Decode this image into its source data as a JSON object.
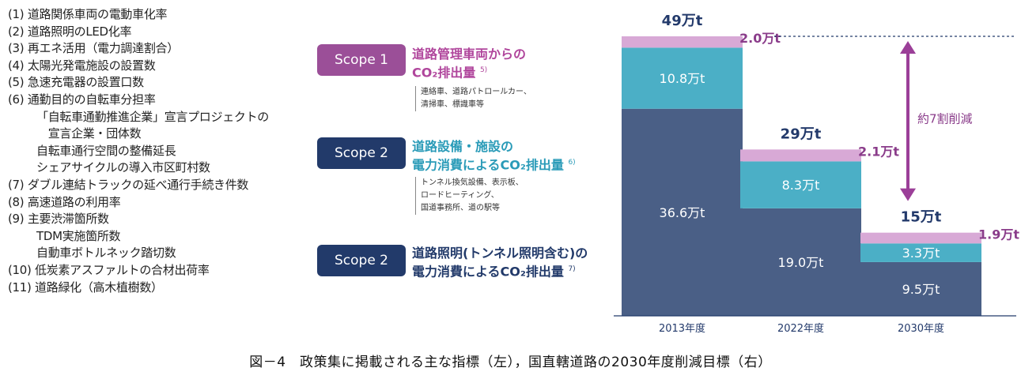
{
  "indicators": [
    {
      "text": "(1) 道路関係車両の電動車化率",
      "indent": false
    },
    {
      "text": "(2) 道路照明のLED化率",
      "indent": false
    },
    {
      "text": "(3) 再エネ活用（電力調達割合）",
      "indent": false
    },
    {
      "text": "(4) 太陽光発電施設の設置数",
      "indent": false
    },
    {
      "text": "(5) 急速充電器の設置口数",
      "indent": false
    },
    {
      "text": "(6) 通勤目的の自転車分担率",
      "indent": false
    },
    {
      "text": "「自転車通勤推進企業」宣言プロジェクトの",
      "indent": true
    },
    {
      "text": "　宣言企業・団体数",
      "indent": true
    },
    {
      "text": "自転車通行空間の整備延長",
      "indent": true
    },
    {
      "text": "シェアサイクルの導入市区町村数",
      "indent": true
    },
    {
      "text": "(7) ダブル連結トラックの延べ通行手続き件数",
      "indent": false
    },
    {
      "text": "(8) 高速道路の利用率",
      "indent": false
    },
    {
      "text": "(9) 主要渋滞箇所数",
      "indent": false
    },
    {
      "text": "TDM実施箇所数",
      "indent": true
    },
    {
      "text": "自動車ボトルネック踏切数",
      "indent": true
    },
    {
      "text": "(10) 低炭素アスファルトの合材出荷率",
      "indent": false
    },
    {
      "text": "(11) 道路緑化（高木植樹数）",
      "indent": false
    }
  ],
  "scopes": [
    {
      "badge": "Scope 1",
      "title_line1": "道路管理車両からの",
      "title_line2": "CO₂排出量",
      "ref": "5)",
      "note": "連絡車、道路パトロールカー、\n清掃車、標識車等",
      "color": "#9b4f98",
      "text_color": "#b0469c"
    },
    {
      "badge": "Scope 2",
      "title_line1": "道路設備・施設の",
      "title_line2": "電力消費によるCO₂排出量",
      "ref": "6)",
      "note": "トンネル換気設備、表示板、\nロードヒーティング、\n国道事務所、道の駅等",
      "color": "#223a6a",
      "text_color": "#2a9bb8"
    },
    {
      "badge": "Scope 2",
      "title_line1": "道路照明(トンネル照明含む)の",
      "title_line2": "電力消費によるCO₂排出量",
      "ref": "7)",
      "note": "",
      "color": "#223a6a",
      "text_color": "#223a6a"
    }
  ],
  "chart_data": {
    "type": "bar",
    "stacked": true,
    "unit": "万t",
    "categories": [
      "2013年度",
      "2022年度",
      "2030年度"
    ],
    "series": [
      {
        "values": [
          36.6,
          19.0,
          9.5
        ],
        "labels": [
          "36.6万t",
          "19.0万t",
          "9.5万t"
        ],
        "color": "#4a5f86"
      },
      {
        "values": [
          10.8,
          8.3,
          3.3
        ],
        "labels": [
          "10.8万t",
          "8.3万t",
          "3.3万t"
        ],
        "color": "#4bafc6"
      },
      {
        "values": [
          2.0,
          2.1,
          1.9
        ],
        "labels": [
          "2.0万t",
          "2.1万t",
          "1.9万t"
        ],
        "color": "#d8a9d6"
      }
    ],
    "totals": [
      "49万t",
      "29万t",
      "15万t"
    ],
    "annotation": "約7割削減",
    "ylim": [
      0,
      49.4
    ],
    "colors": {
      "annotation": "#9b3f98",
      "axis": "#233a6b"
    }
  },
  "caption": "図－4　政策集に掲載される主な指標（左），国直轄道路の2030年度削減目標（右）"
}
